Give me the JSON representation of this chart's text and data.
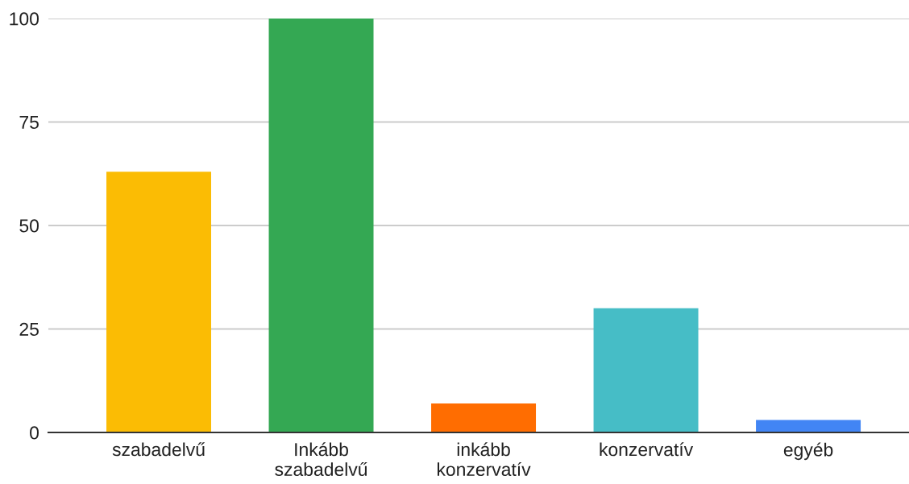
{
  "chart_data": {
    "type": "bar",
    "categories": [
      "szabadelvű",
      "Inkább szabadelvű",
      "inkább konzervatív",
      "konzervatív",
      "egyéb"
    ],
    "values": [
      63,
      100,
      7,
      30,
      3
    ],
    "colors": [
      "#fbbc04",
      "#34a853",
      "#ff6d01",
      "#46bdc6",
      "#4285f4"
    ],
    "ylim": [
      0,
      100
    ],
    "yticks": [
      0,
      25,
      50,
      75,
      100
    ],
    "grid": "y",
    "legend": false
  }
}
